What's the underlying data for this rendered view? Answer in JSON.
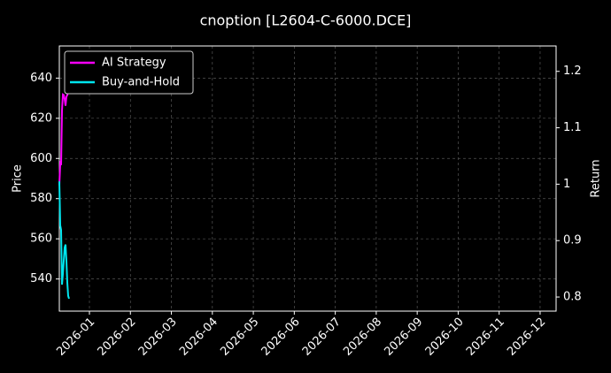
{
  "chart_data": {
    "type": "line",
    "title": "cnoption [L2604-C-6000.DCE]",
    "ylabel": "Price",
    "y2label": "Return",
    "xlim": [
      -0.735,
      11.39
    ],
    "xticks": [
      {
        "value": 0,
        "label": "2026-01"
      },
      {
        "value": 1,
        "label": "2026-02"
      },
      {
        "value": 2,
        "label": "2026-03"
      },
      {
        "value": 3,
        "label": "2026-04"
      },
      {
        "value": 4,
        "label": "2026-05"
      },
      {
        "value": 5,
        "label": "2026-06"
      },
      {
        "value": 6,
        "label": "2026-07"
      },
      {
        "value": 7,
        "label": "2026-08"
      },
      {
        "value": 8,
        "label": "2026-09"
      },
      {
        "value": 9,
        "label": "2026-10"
      },
      {
        "value": 10,
        "label": "2026-11"
      },
      {
        "value": 11,
        "label": "2026-12"
      }
    ],
    "ylim": [
      524,
      656
    ],
    "yticks": [
      540,
      560,
      580,
      600,
      620,
      640
    ],
    "y2lim": [
      0.775,
      1.245
    ],
    "y2ticks": [
      0.8,
      0.9,
      1.0,
      1.1,
      1.2
    ],
    "grid": true,
    "legend": "upper left",
    "series": [
      {
        "name": "AI Strategy",
        "color": "#ff00ff",
        "axis": "y2",
        "x": [
          -0.735,
          -0.713,
          -0.692,
          -0.67,
          -0.648,
          -0.627,
          -0.605,
          -0.584,
          -0.562,
          -0.54,
          -0.519
        ],
        "values": [
          0.998,
          1.037,
          1.034,
          1.131,
          1.159,
          1.158,
          1.151,
          1.139,
          1.155,
          1.158,
          1.164
        ]
      },
      {
        "name": "Buy-and-Hold",
        "color": "#00e5ee",
        "axis": "y2",
        "x": [
          -0.735,
          -0.713,
          -0.692,
          -0.67,
          -0.648,
          -0.627,
          -0.605,
          -0.584,
          -0.562,
          -0.54,
          -0.519,
          -0.497
        ],
        "values": [
          1.005,
          0.927,
          0.919,
          0.822,
          0.841,
          0.864,
          0.888,
          0.893,
          0.864,
          0.825,
          0.802,
          0.797
        ]
      }
    ]
  }
}
